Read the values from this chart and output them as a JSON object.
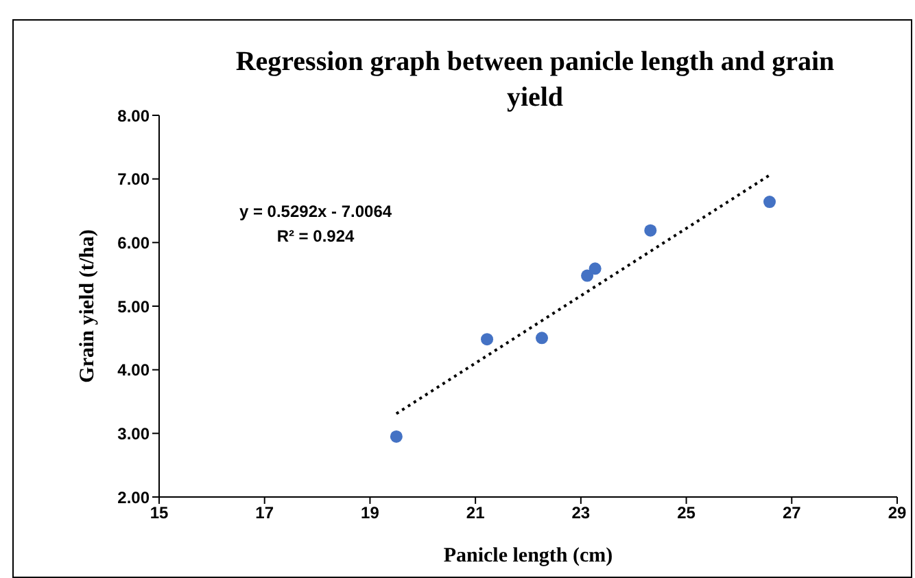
{
  "chart_data": {
    "type": "scatter",
    "title": "Regression graph between panicle length and grain yield",
    "xlabel": "Panicle length (cm)",
    "ylabel": "Grain yield (t/ha)",
    "annotations": [
      "y = 0.5292x - 7.0064",
      "R² = 0.924"
    ],
    "xlim": [
      15,
      29
    ],
    "xticks": [
      15,
      17,
      19,
      21,
      23,
      25,
      27,
      29
    ],
    "ylim": [
      2,
      8
    ],
    "yticks": [
      {
        "value": 2,
        "label": "2.00"
      },
      {
        "value": 3,
        "label": "3.00"
      },
      {
        "value": 4,
        "label": "4.00"
      },
      {
        "value": 5,
        "label": "5.00"
      },
      {
        "value": 6,
        "label": "6.00"
      },
      {
        "value": 7,
        "label": "7.00"
      },
      {
        "value": 8,
        "label": "8.00"
      }
    ],
    "grid": false,
    "legend": false,
    "series": [
      {
        "type": "scatter",
        "color": "#4472c4",
        "marker": "circle",
        "x": [
          19.5,
          21.22,
          22.26,
          23.12,
          23.27,
          24.32,
          26.58
        ],
        "values": [
          2.95,
          4.48,
          4.5,
          5.48,
          5.59,
          6.19,
          6.64
        ]
      },
      {
        "type": "line",
        "color": "#000000",
        "marker": "none",
        "line_style": "dotted",
        "x": [
          19.5,
          26.6
        ],
        "values": [
          3.31,
          7.07
        ]
      }
    ]
  }
}
